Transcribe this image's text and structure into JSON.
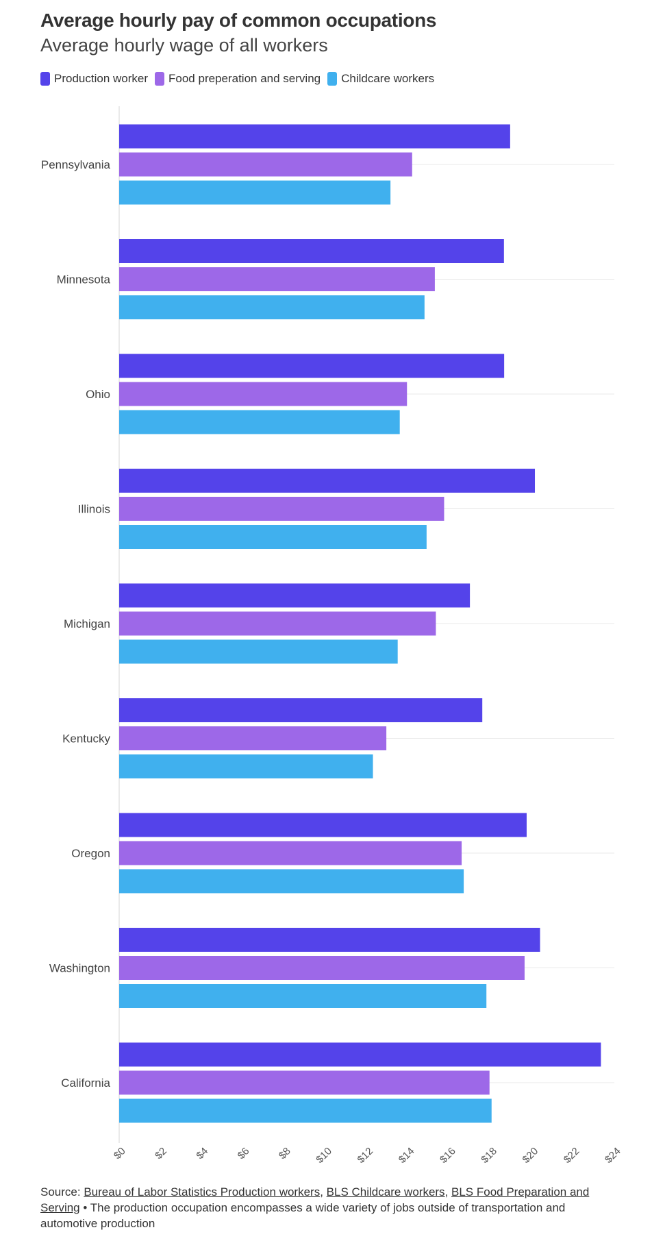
{
  "title": "Average hourly pay of common occupations",
  "subtitle": "Average hourly wage of all workers",
  "colors": {
    "production": "#5443EA",
    "food": "#9D68E8",
    "childcare": "#40B0EE"
  },
  "chart_data": {
    "type": "bar",
    "orientation": "horizontal",
    "categories": [
      "Pennsylvania",
      "Minnesota",
      "Ohio",
      "Illinois",
      "Michigan",
      "Kentucky",
      "Oregon",
      "Washington",
      "California"
    ],
    "series": [
      {
        "name": "Production worker",
        "color": "#5443EA",
        "values": [
          18.95,
          18.65,
          18.66,
          20.15,
          17.0,
          17.6,
          19.75,
          20.4,
          23.35
        ]
      },
      {
        "name": "Food preperation and serving",
        "color": "#9D68E8",
        "values": [
          14.2,
          15.3,
          13.95,
          15.75,
          15.35,
          12.95,
          16.6,
          19.65,
          17.95
        ]
      },
      {
        "name": "Childcare workers",
        "color": "#40B0EE",
        "values": [
          13.15,
          14.8,
          13.6,
          14.9,
          13.5,
          12.3,
          16.7,
          17.8,
          18.05
        ]
      }
    ],
    "xlim": [
      0,
      24
    ],
    "xticks": [
      "$0",
      "$2",
      "$4",
      "$6",
      "$8",
      "$10",
      "$12",
      "$14",
      "$16",
      "$18",
      "$20",
      "$22",
      "$24"
    ],
    "xlabel": "",
    "ylabel": "",
    "grid": true,
    "legend_position": "top-left"
  },
  "footer": {
    "prefix": "Source: ",
    "link1": "Bureau of Labor Statistics Production workers",
    "sep1": ", ",
    "link2": "BLS Childcare workers",
    "sep2": ", ",
    "link3": "BLS Food Preparation and Serving",
    "note": " • The production occupation encompasses a wide variety of jobs outside of transportation and automotive production"
  }
}
